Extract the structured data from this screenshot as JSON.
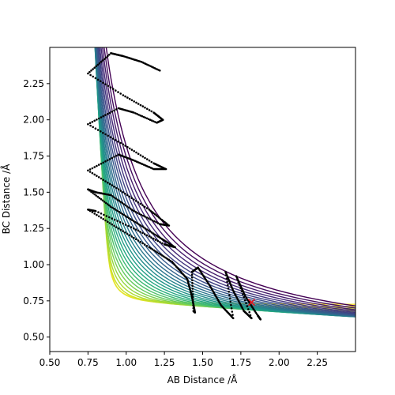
{
  "chart_data": {
    "type": "contour",
    "xlabel": "AB Distance /Å",
    "ylabel": "BC Distance /Å",
    "xlim": [
      0.5,
      2.5
    ],
    "ylim": [
      0.4,
      2.5
    ],
    "xticks": [
      "0.50",
      "0.75",
      "1.00",
      "1.25",
      "1.50",
      "1.75",
      "2.00",
      "2.25"
    ],
    "yticks": [
      "0.50",
      "0.75",
      "1.00",
      "1.25",
      "1.50",
      "1.75",
      "2.00",
      "2.25"
    ],
    "xtick_values": [
      0.5,
      0.75,
      1.0,
      1.25,
      1.5,
      1.75,
      2.0,
      2.25
    ],
    "ytick_values": [
      0.5,
      0.75,
      1.0,
      1.25,
      1.5,
      1.75,
      2.0,
      2.25
    ],
    "grid": false,
    "colormap": "viridis",
    "contour_levels": 26,
    "contour_colors": [
      "#440154",
      "#472c7a",
      "#3b518b",
      "#2c718e",
      "#21918c",
      "#27ad81",
      "#5cc863",
      "#aadc32",
      "#fde725"
    ],
    "trajectory": {
      "color": "#000000",
      "points": [
        [
          1.22,
          2.34
        ],
        [
          1.1,
          2.4
        ],
        [
          0.98,
          2.44
        ],
        [
          0.9,
          2.46
        ],
        [
          0.75,
          2.32
        ],
        [
          0.98,
          2.17
        ],
        [
          1.18,
          2.05
        ],
        [
          1.24,
          2.0
        ],
        [
          1.2,
          1.98
        ],
        [
          1.05,
          2.05
        ],
        [
          0.95,
          2.08
        ],
        [
          0.75,
          1.97
        ],
        [
          0.98,
          1.83
        ],
        [
          1.18,
          1.7
        ],
        [
          1.26,
          1.66
        ],
        [
          1.18,
          1.66
        ],
        [
          1.05,
          1.72
        ],
        [
          0.95,
          1.76
        ],
        [
          0.75,
          1.65
        ],
        [
          0.95,
          1.52
        ],
        [
          1.15,
          1.38
        ],
        [
          1.28,
          1.27
        ],
        [
          1.22,
          1.28
        ],
        [
          1.05,
          1.37
        ],
        [
          0.9,
          1.48
        ],
        [
          0.8,
          1.5
        ],
        [
          0.75,
          1.52
        ],
        [
          0.9,
          1.4
        ],
        [
          1.05,
          1.3
        ],
        [
          1.2,
          1.2
        ],
        [
          1.32,
          1.12
        ],
        [
          1.25,
          1.14
        ],
        [
          1.05,
          1.25
        ],
        [
          0.8,
          1.37
        ],
        [
          0.75,
          1.38
        ],
        [
          0.95,
          1.25
        ],
        [
          1.15,
          1.12
        ],
        [
          1.3,
          1.02
        ],
        [
          1.4,
          0.9
        ],
        [
          1.43,
          0.78
        ],
        [
          1.45,
          0.67
        ],
        [
          1.44,
          0.68
        ],
        [
          1.43,
          0.95
        ],
        [
          1.47,
          0.98
        ],
        [
          1.55,
          0.85
        ],
        [
          1.62,
          0.72
        ],
        [
          1.7,
          0.63
        ],
        [
          1.65,
          0.95
        ],
        [
          1.7,
          0.82
        ],
        [
          1.77,
          0.68
        ],
        [
          1.82,
          0.63
        ],
        [
          1.72,
          0.92
        ],
        [
          1.78,
          0.78
        ],
        [
          1.86,
          0.65
        ],
        [
          1.88,
          0.62
        ]
      ]
    },
    "marker": {
      "x": 1.82,
      "y": 0.74,
      "symbol": "x",
      "color": "#e8141c"
    }
  }
}
